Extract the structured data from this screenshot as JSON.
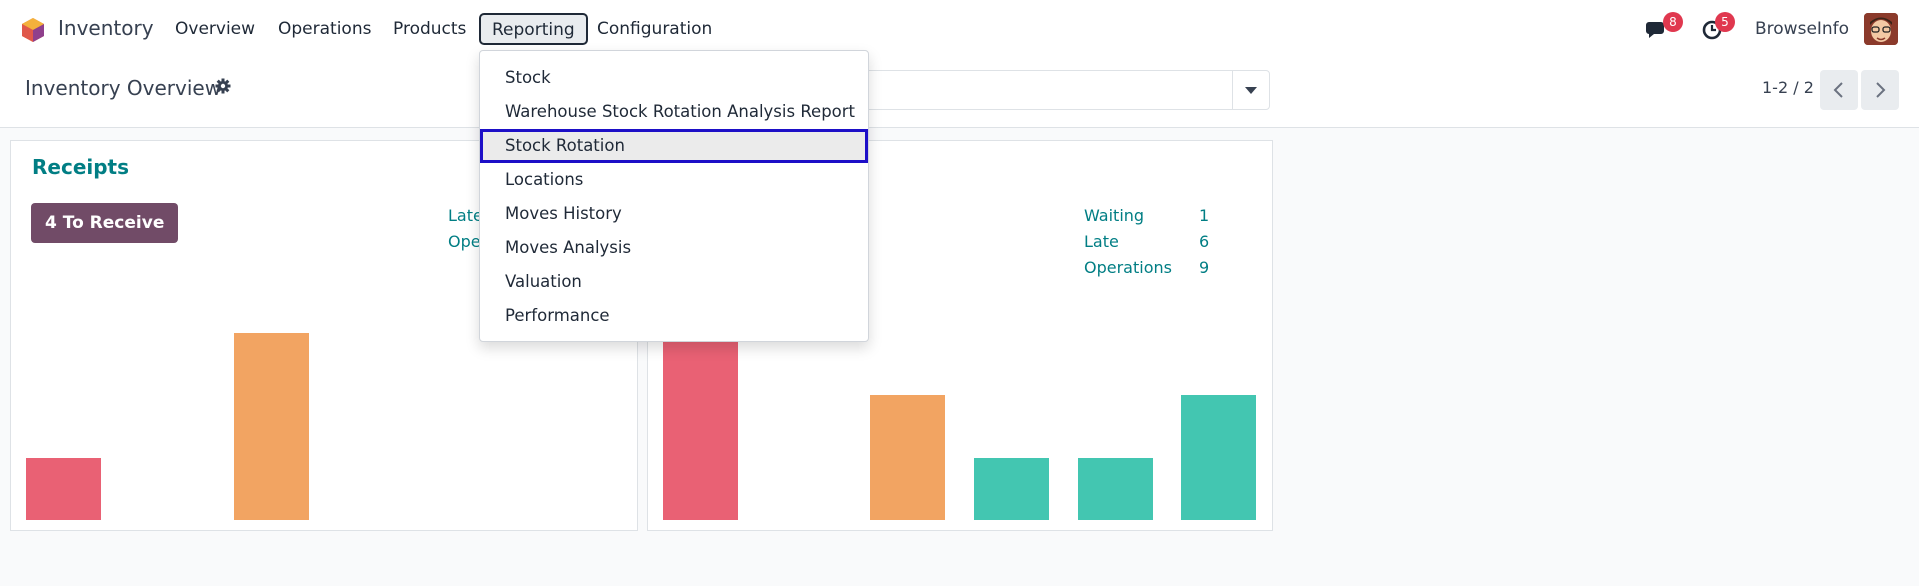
{
  "navbar": {
    "app_name": "Inventory",
    "menu": [
      "Overview",
      "Operations",
      "Products",
      "Reporting",
      "Configuration"
    ],
    "messages_count": "8",
    "activities_count": "5",
    "user_name": "BrowseInfo"
  },
  "control_panel": {
    "title": "Inventory Overview",
    "pager_value": "1-2 / 2"
  },
  "reporting_menu": {
    "items": [
      "Stock",
      "Warehouse Stock Rotation Analysis Report",
      "Stock Rotation",
      "Locations",
      "Moves History",
      "Moves Analysis",
      "Valuation",
      "Performance"
    ],
    "focused_item": "Stock Rotation"
  },
  "cards": [
    {
      "title": "Receipts",
      "button_label": "4 To Receive",
      "stats_visible": [
        {
          "label": "Late"
        },
        {
          "label": "Ope"
        }
      ],
      "bars": [
        {
          "value": 1,
          "color": "#e96174"
        },
        {
          "value": 0,
          "color": "#f2a462"
        },
        {
          "value": 3,
          "color": "#f2a462"
        }
      ]
    },
    {
      "title": "",
      "stats": [
        {
          "label": "Waiting",
          "value": "1"
        },
        {
          "label": "Late",
          "value": "6"
        },
        {
          "label": "Operations",
          "value": "9"
        }
      ],
      "bars": [
        {
          "value": 3,
          "color": "#e96174"
        },
        {
          "value": 0,
          "color": "#f2a462"
        },
        {
          "value": 2,
          "color": "#f2a462"
        },
        {
          "value": 1,
          "color": "#43c6b1"
        },
        {
          "value": 1,
          "color": "#43c6b1"
        },
        {
          "value": 2,
          "color": "#43c6b1"
        }
      ]
    }
  ],
  "colors": {
    "accent": "#017e84",
    "primary": "#714b67",
    "badge": "#e0384f",
    "late": "#e96174",
    "planned": "#f2a462",
    "future": "#43c6b1",
    "focus_outline": "#1d0fc7"
  }
}
